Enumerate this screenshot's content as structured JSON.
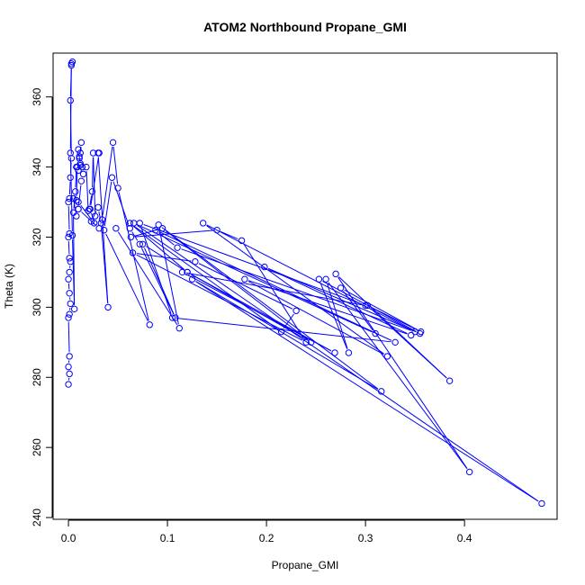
{
  "chart_data": {
    "type": "line",
    "title": "ATOM2 Northbound Propane_GMI",
    "xlabel": "Propane_GMI",
    "ylabel": "Theta (K)",
    "xlim": [
      -0.0155,
      0.4935
    ],
    "ylim": [
      239.5,
      372.5
    ],
    "xticks": [
      0.0,
      0.1,
      0.2,
      0.3,
      0.4
    ],
    "xtick_labels": [
      "0.0",
      "0.1",
      "0.2",
      "0.3",
      "0.4"
    ],
    "yticks": [
      240,
      260,
      280,
      300,
      320,
      340,
      360
    ],
    "ytick_labels": [
      "240",
      "260",
      "280",
      "300",
      "320",
      "340",
      "360"
    ],
    "grid": false,
    "line_color": "#0000ff",
    "marker": "open-circle",
    "series": [
      {
        "x": [
          0.0,
          0.001,
          0.0,
          0.001,
          0.0,
          0.001,
          0.002,
          0.001,
          0.0,
          0.001,
          0.002,
          0.001,
          0.0,
          0.001,
          0.0,
          0.001,
          0.002,
          0.003,
          0.002,
          0.003,
          0.004,
          0.003,
          0.002,
          0.004,
          0.006,
          0.005,
          0.007,
          0.008,
          0.01,
          0.012,
          0.011,
          0.013,
          0.012,
          0.011,
          0.01,
          0.012,
          0.009,
          0.008,
          0.01,
          0.013,
          0.015,
          0.014,
          0.018,
          0.02,
          0.021,
          0.024,
          0.025,
          0.027,
          0.023,
          0.03,
          0.033,
          0.04,
          0.03,
          0.031,
          0.022,
          0.026,
          0.01,
          0.005,
          0.008,
          0.01,
          0.031,
          0.034,
          0.045,
          0.05,
          0.082,
          0.036,
          0.044,
          0.062,
          0.072,
          0.108,
          0.075,
          0.12,
          0.245,
          0.095,
          0.063,
          0.15,
          0.175,
          0.24,
          0.065,
          0.128,
          0.23,
          0.215,
          0.062,
          0.12,
          0.269,
          0.115,
          0.3,
          0.072,
          0.105,
          0.33,
          0.088,
          0.11,
          0.35,
          0.136,
          0.322,
          0.178,
          0.346,
          0.198,
          0.355,
          0.253,
          0.283,
          0.26,
          0.405,
          0.27,
          0.385,
          0.302,
          0.356,
          0.275,
          0.31,
          0.066,
          0.478,
          0.125,
          0.316,
          0.091,
          0.112,
          0.048
        ],
        "y": [
          278.0,
          281.0,
          283.0,
          286.0,
          297.0,
          298.0,
          301.0,
          304.0,
          308.0,
          310.0,
          313.0,
          314.0,
          320.0,
          321.0,
          330.0,
          331.0,
          337.0,
          342.5,
          359.0,
          369.0,
          370.0,
          369.5,
          344.0,
          320.5,
          299.5,
          327.0,
          333.0,
          340.0,
          339.0,
          341.0,
          342.5,
          347.0,
          344.0,
          343.0,
          345.0,
          340.5,
          340.0,
          330.5,
          328.0,
          336.0,
          338.0,
          340.0,
          340.0,
          327.5,
          328.0,
          333.0,
          344.0,
          326.0,
          324.5,
          328.5,
          324.0,
          300.0,
          344.0,
          344.0,
          328.0,
          324.0,
          330.0,
          331.0,
          326.0,
          328.0,
          322.5,
          325.0,
          347.0,
          334.0,
          295.0,
          322.0,
          337.0,
          322.5,
          318.0,
          297.0,
          318.0,
          310.0,
          290.0,
          322.5,
          320.0,
          322.0,
          319.0,
          290.0,
          315.5,
          313.0,
          299.0,
          293.0,
          324.0,
          310.0,
          287.0,
          310.0,
          300.5,
          324.0,
          297.0,
          290.0,
          322.0,
          317.0,
          293.0,
          324.0,
          286.0,
          308.0,
          292.0,
          311.5,
          292.5,
          308.0,
          287.0,
          308.0,
          253.0,
          309.5,
          279.0,
          300.5,
          293.0,
          305.5,
          292.5,
          324.0,
          244.0,
          308.0,
          276.0,
          323.5,
          294.0,
          322.5
        ]
      }
    ]
  }
}
